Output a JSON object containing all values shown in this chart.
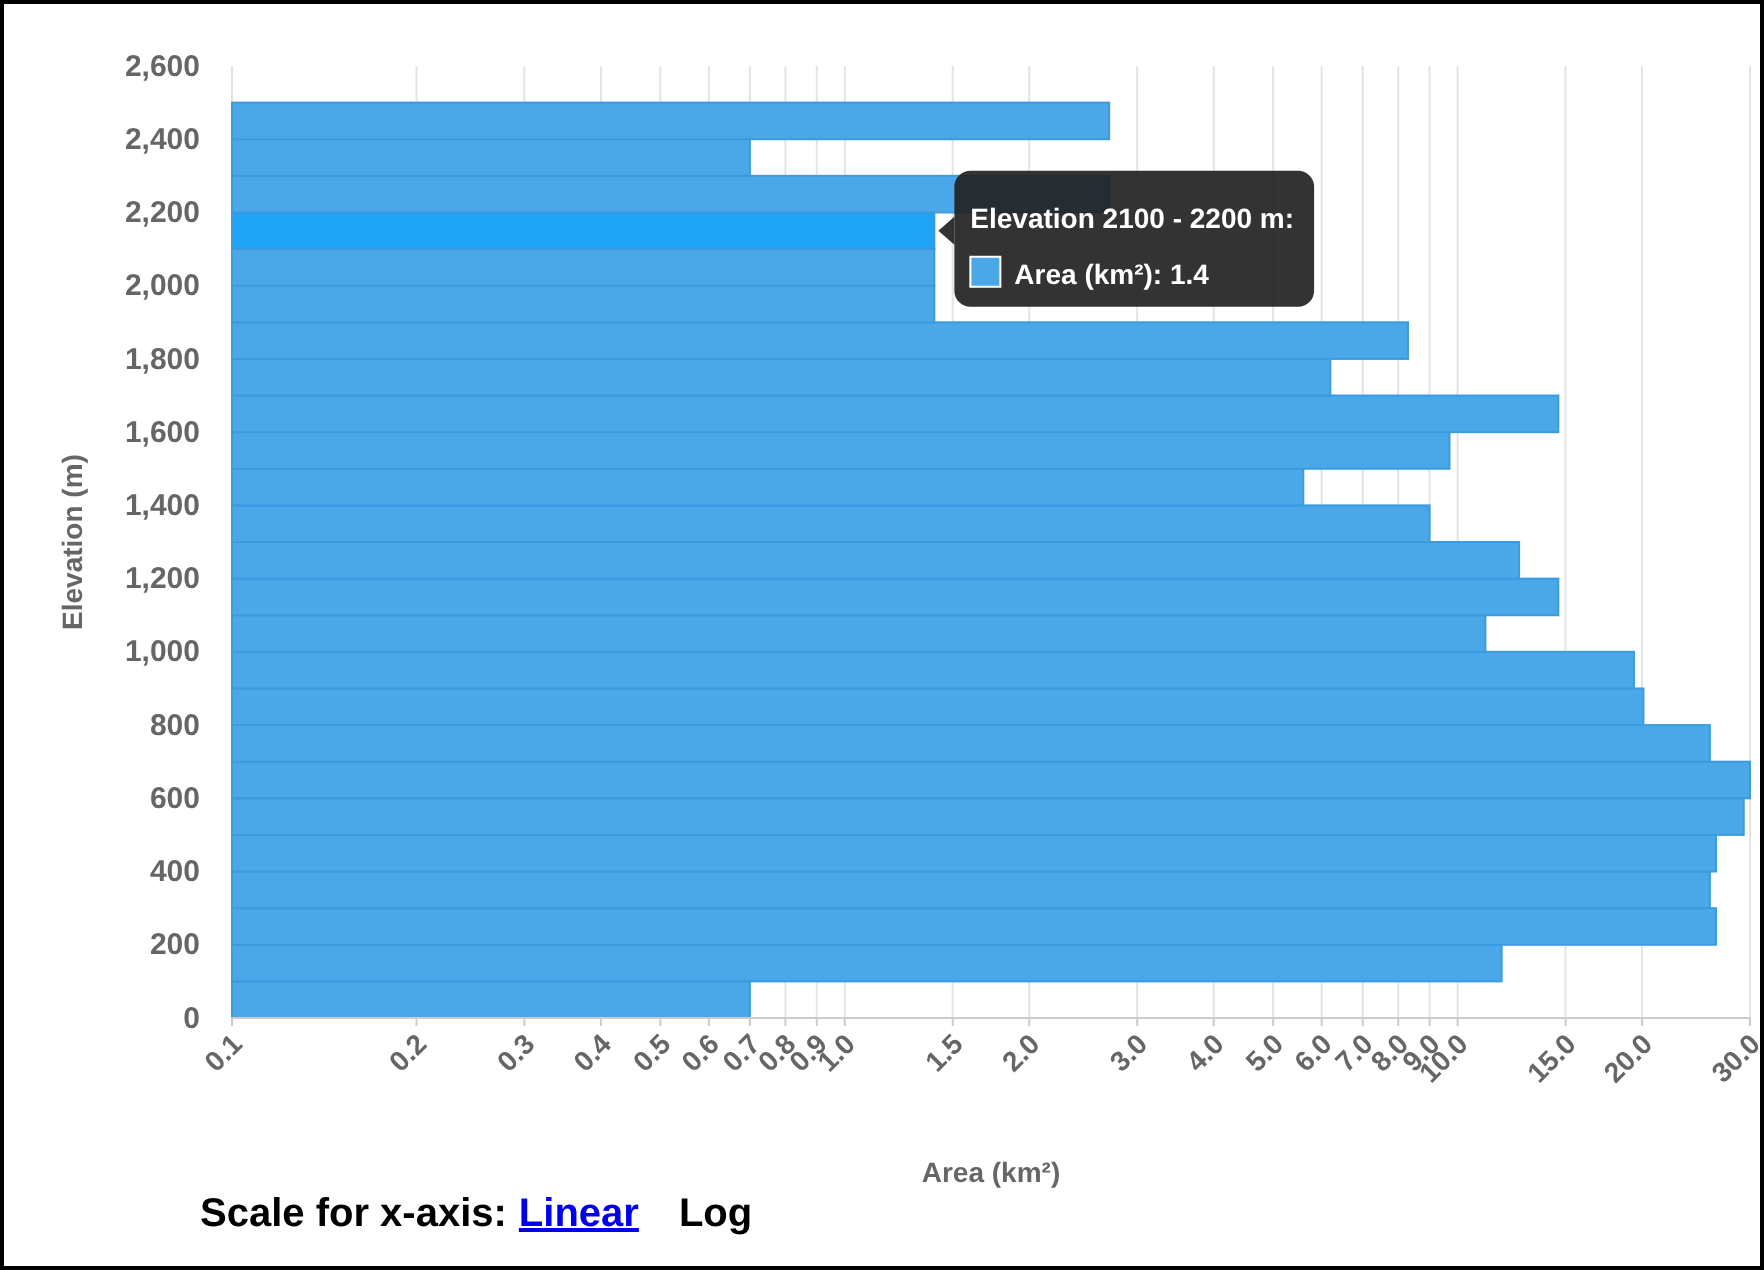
{
  "chart_data": {
    "type": "histogram",
    "orientation": "horizontal",
    "log": "x",
    "xlabel": "Area (km²)",
    "ylabel": "Elevation (m)",
    "bins": [
      0,
      100,
      200,
      300,
      400,
      500,
      600,
      700,
      800,
      900,
      1000,
      1100,
      1200,
      1300,
      1400,
      1500,
      1600,
      1700,
      1800,
      1900,
      2000,
      2100,
      2200,
      2300,
      2400,
      2500
    ],
    "values": [
      0.7,
      11.8,
      26.4,
      25.8,
      26.4,
      29.3,
      30,
      25.8,
      20.1,
      19.4,
      11.1,
      14.6,
      12.6,
      9.0,
      5.6,
      9.7,
      14.6,
      6.2,
      8.3,
      1.4,
      1.4,
      1.4,
      2.7,
      0.7,
      2.7
    ],
    "colors": [
      "#4aa8e8",
      "#4aa8e8",
      "#4aa8e8",
      "#4aa8e8",
      "#4aa8e8",
      "#4aa8e8",
      "#4aa8e8",
      "#4aa8e8",
      "#4aa8e8",
      "#4aa8e8",
      "#4aa8e8",
      "#4aa8e8",
      "#4aa8e8",
      "#4aa8e8",
      "#4aa8e8",
      "#4aa8e8",
      "#4aa8e8",
      "#4aa8e8",
      "#4aa8e8",
      "#4aa8e8",
      "#4aa8e8",
      "#1ea3f7",
      "#4aa8e8",
      "#4aa8e8",
      "#4aa8e8"
    ],
    "xlim": [
      0.1,
      30
    ],
    "xticks": [
      0.1,
      0.2,
      0.3,
      0.4,
      0.5,
      0.6,
      0.7,
      0.8,
      0.9,
      {
        "value": 1,
        "label": "1.0"
      },
      1.5,
      {
        "value": 2,
        "label": "2.0"
      },
      {
        "value": 3,
        "label": "3.0"
      },
      {
        "value": 4,
        "label": "4.0"
      },
      {
        "value": 5,
        "label": "5.0"
      },
      {
        "value": 6,
        "label": "6.0"
      },
      {
        "value": 7,
        "label": "7.0"
      },
      {
        "value": 8,
        "label": "8.0"
      },
      {
        "value": 9,
        "label": "9.0"
      },
      {
        "value": 10,
        "label": "10.0"
      },
      {
        "value": 15,
        "label": "15.0"
      },
      {
        "value": 20,
        "label": "20.0"
      },
      {
        "value": 30,
        "label": "30.0"
      }
    ],
    "ylim": [
      0,
      2600
    ],
    "yticks": [
      0,
      200,
      400,
      600,
      800,
      {
        "value": 1000,
        "label": "1,000"
      },
      {
        "value": 1200,
        "label": "1,200"
      },
      {
        "value": 1400,
        "label": "1,400"
      },
      {
        "value": 1600,
        "label": "1,600"
      },
      {
        "value": 1800,
        "label": "1,800"
      },
      {
        "value": 2000,
        "label": "2,000"
      },
      {
        "value": 2200,
        "label": "2,200"
      },
      {
        "value": 2400,
        "label": "2,400"
      },
      {
        "value": 2600,
        "label": "2,600"
      }
    ],
    "grid": "x",
    "annotations": [
      {
        "text": "Elevation 2100 - 2200 m:",
        "x": 1.4,
        "y": 2150
      },
      "Area (km²): 1.4",
      "Scale for x-axis:",
      "Linear",
      "Log"
    ]
  }
}
